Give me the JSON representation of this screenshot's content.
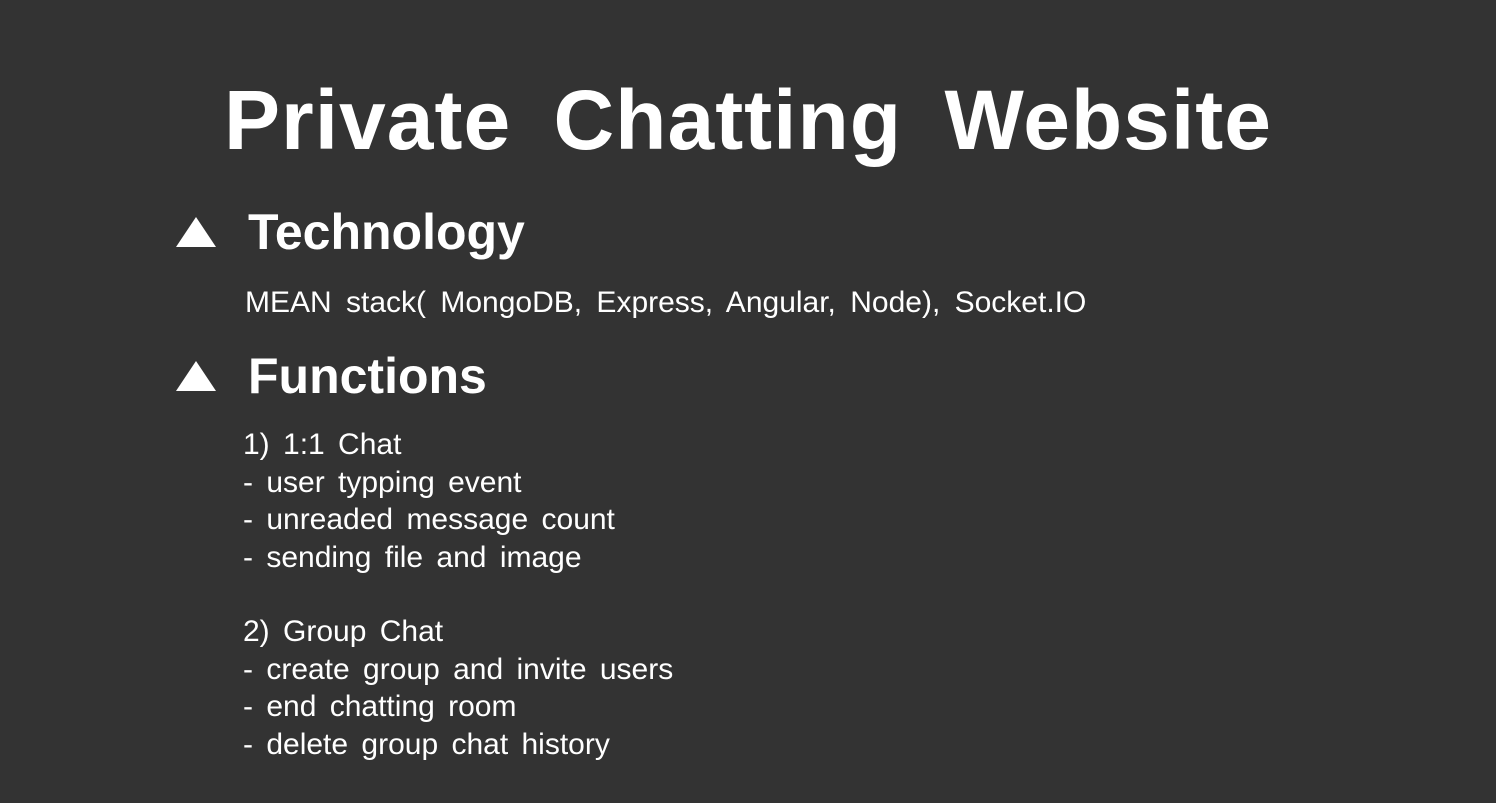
{
  "slide": {
    "title": "Private Chatting Website",
    "technology": {
      "heading": "Technology",
      "text": "MEAN stack( MongoDB, Express, Angular, Node), Socket.IO"
    },
    "functions": {
      "heading": "Functions",
      "groups": [
        {
          "title": "1) 1:1 Chat",
          "items": [
            "- user typping event",
            "- unreaded message count",
            "- sending file and image"
          ]
        },
        {
          "title": "2) Group Chat",
          "items": [
            "- create group and invite users",
            "- end chatting room",
            "- delete group chat history"
          ]
        }
      ]
    }
  },
  "colors": {
    "background": "#333333",
    "text": "#ffffff"
  },
  "icons": {
    "bullet": "triangle-up-icon"
  }
}
